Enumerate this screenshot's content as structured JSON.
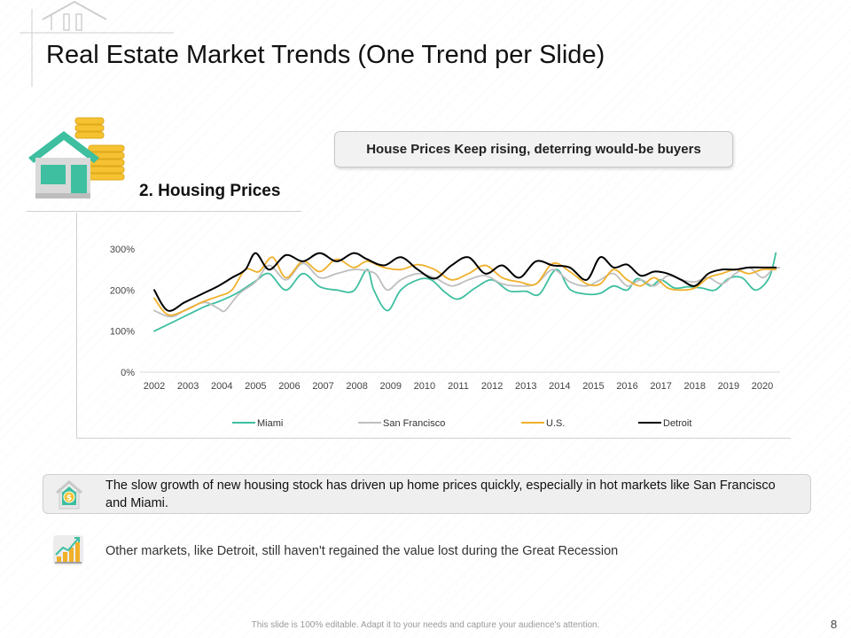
{
  "slide": {
    "title": "Real Estate Market Trends (One Trend per Slide)",
    "callout": "House Prices Keep rising, deterring would-be buyers",
    "section_title": "2. Housing Prices",
    "note1": "The slow growth of new housing stock has driven up home prices quickly, especially in hot markets like San Francisco and Miami.",
    "note2": "Other markets, like Detroit, still haven't regained the value lost during the Great Recession",
    "footer": "This slide is 100% editable. Adapt it to your needs and capture your audience's attention.",
    "page_number": "8"
  },
  "icons": {
    "corner": "house-outline-icon",
    "main": "house-with-coins-icon",
    "note1": "house-dollar-icon",
    "note2": "bar-chart-growth-icon"
  },
  "colors": {
    "miami": "#3dbfa0",
    "san_francisco": "#bfbfbf",
    "us": "#f0b02a",
    "detroit": "#000000",
    "house_green": "#3dbfa0",
    "coin_gold": "#f5c232"
  },
  "chart_data": {
    "type": "line",
    "title": "",
    "xlabel": "",
    "ylabel": "",
    "x": [
      "2002",
      "2003",
      "2004",
      "2005",
      "2006",
      "2007",
      "2008",
      "2009",
      "2010",
      "2011",
      "2012",
      "2013",
      "2014",
      "2015",
      "2016",
      "2017",
      "2018",
      "2019",
      "2020"
    ],
    "y_ticks": [
      "0%",
      "100%",
      "200%",
      "300%"
    ],
    "ylim": [
      0,
      300
    ],
    "grid": false,
    "legend_position": "bottom",
    "series": [
      {
        "name": "Miami",
        "color": "#3dbfa0",
        "points": [
          [
            2002.0,
            100
          ],
          [
            2002.5,
            120
          ],
          [
            2003.0,
            140
          ],
          [
            2003.5,
            160
          ],
          [
            2004.0,
            175
          ],
          [
            2004.5,
            195
          ],
          [
            2005.0,
            222
          ],
          [
            2005.4,
            240
          ],
          [
            2005.9,
            200
          ],
          [
            2006.4,
            240
          ],
          [
            2006.9,
            208
          ],
          [
            2007.4,
            200
          ],
          [
            2007.9,
            198
          ],
          [
            2008.3,
            250
          ],
          [
            2008.5,
            200
          ],
          [
            2008.9,
            150
          ],
          [
            2009.3,
            200
          ],
          [
            2009.8,
            225
          ],
          [
            2010.2,
            225
          ],
          [
            2010.6,
            195
          ],
          [
            2011.0,
            178
          ],
          [
            2011.5,
            205
          ],
          [
            2012.0,
            225
          ],
          [
            2012.5,
            198
          ],
          [
            2013.0,
            197
          ],
          [
            2013.4,
            190
          ],
          [
            2013.9,
            250
          ],
          [
            2014.3,
            202
          ],
          [
            2014.8,
            190
          ],
          [
            2015.2,
            192
          ],
          [
            2015.6,
            210
          ],
          [
            2016.0,
            200
          ],
          [
            2016.3,
            228
          ],
          [
            2016.7,
            210
          ],
          [
            2017.0,
            225
          ],
          [
            2017.4,
            205
          ],
          [
            2017.8,
            208
          ],
          [
            2018.2,
            205
          ],
          [
            2018.6,
            200
          ],
          [
            2019.0,
            228
          ],
          [
            2019.4,
            230
          ],
          [
            2019.8,
            200
          ],
          [
            2020.2,
            230
          ],
          [
            2020.4,
            290
          ]
        ]
      },
      {
        "name": "San Francisco",
        "color": "#bfbfbf",
        "points": [
          [
            2002.0,
            150
          ],
          [
            2002.5,
            135
          ],
          [
            2003.0,
            155
          ],
          [
            2003.5,
            170
          ],
          [
            2003.9,
            155
          ],
          [
            2004.1,
            150
          ],
          [
            2004.5,
            190
          ],
          [
            2005.0,
            220
          ],
          [
            2005.4,
            260
          ],
          [
            2005.9,
            225
          ],
          [
            2006.4,
            265
          ],
          [
            2006.9,
            230
          ],
          [
            2007.4,
            240
          ],
          [
            2007.9,
            250
          ],
          [
            2008.4,
            245
          ],
          [
            2008.6,
            235
          ],
          [
            2008.9,
            200
          ],
          [
            2009.3,
            225
          ],
          [
            2009.8,
            240
          ],
          [
            2010.3,
            230
          ],
          [
            2010.8,
            210
          ],
          [
            2011.3,
            225
          ],
          [
            2011.8,
            235
          ],
          [
            2012.3,
            215
          ],
          [
            2012.8,
            210
          ],
          [
            2013.3,
            215
          ],
          [
            2013.8,
            250
          ],
          [
            2014.3,
            220
          ],
          [
            2014.8,
            210
          ],
          [
            2015.2,
            225
          ],
          [
            2015.6,
            240
          ],
          [
            2016.0,
            210
          ],
          [
            2016.4,
            225
          ],
          [
            2016.8,
            210
          ],
          [
            2017.2,
            235
          ],
          [
            2017.6,
            225
          ],
          [
            2018.0,
            220
          ],
          [
            2018.4,
            230
          ],
          [
            2018.8,
            215
          ],
          [
            2019.2,
            240
          ],
          [
            2019.6,
            255
          ],
          [
            2020.0,
            230
          ],
          [
            2020.3,
            250
          ],
          [
            2020.5,
            255
          ]
        ]
      },
      {
        "name": "U.S.",
        "color": "#f0b02a",
        "points": [
          [
            2002.0,
            180
          ],
          [
            2002.4,
            140
          ],
          [
            2002.9,
            150
          ],
          [
            2003.4,
            170
          ],
          [
            2003.9,
            185
          ],
          [
            2004.3,
            200
          ],
          [
            2004.7,
            250
          ],
          [
            2005.1,
            245
          ],
          [
            2005.5,
            280
          ],
          [
            2005.9,
            230
          ],
          [
            2006.4,
            270
          ],
          [
            2006.9,
            245
          ],
          [
            2007.4,
            275
          ],
          [
            2007.9,
            255
          ],
          [
            2008.3,
            270
          ],
          [
            2008.8,
            255
          ],
          [
            2009.3,
            250
          ],
          [
            2009.8,
            262
          ],
          [
            2010.3,
            250
          ],
          [
            2010.8,
            225
          ],
          [
            2011.3,
            240
          ],
          [
            2011.8,
            260
          ],
          [
            2012.3,
            230
          ],
          [
            2012.8,
            220
          ],
          [
            2013.3,
            215
          ],
          [
            2013.8,
            265
          ],
          [
            2014.3,
            245
          ],
          [
            2014.8,
            215
          ],
          [
            2015.2,
            215
          ],
          [
            2015.6,
            250
          ],
          [
            2016.0,
            225
          ],
          [
            2016.4,
            210
          ],
          [
            2016.8,
            230
          ],
          [
            2017.2,
            205
          ],
          [
            2017.6,
            200
          ],
          [
            2018.0,
            205
          ],
          [
            2018.4,
            230
          ],
          [
            2018.8,
            240
          ],
          [
            2019.2,
            250
          ],
          [
            2019.6,
            240
          ],
          [
            2020.0,
            250
          ],
          [
            2020.4,
            250
          ]
        ]
      },
      {
        "name": "Detroit",
        "color": "#000000",
        "points": [
          [
            2002.0,
            200
          ],
          [
            2002.4,
            150
          ],
          [
            2002.9,
            170
          ],
          [
            2003.4,
            190
          ],
          [
            2003.9,
            210
          ],
          [
            2004.3,
            230
          ],
          [
            2004.7,
            250
          ],
          [
            2005.0,
            290
          ],
          [
            2005.4,
            250
          ],
          [
            2005.9,
            285
          ],
          [
            2006.4,
            270
          ],
          [
            2006.9,
            290
          ],
          [
            2007.4,
            270
          ],
          [
            2007.9,
            290
          ],
          [
            2008.3,
            275
          ],
          [
            2008.8,
            260
          ],
          [
            2009.3,
            280
          ],
          [
            2009.8,
            250
          ],
          [
            2010.3,
            228
          ],
          [
            2010.8,
            260
          ],
          [
            2011.3,
            280
          ],
          [
            2011.8,
            240
          ],
          [
            2012.3,
            260
          ],
          [
            2012.8,
            230
          ],
          [
            2013.3,
            270
          ],
          [
            2013.8,
            260
          ],
          [
            2014.3,
            255
          ],
          [
            2014.8,
            225
          ],
          [
            2015.2,
            280
          ],
          [
            2015.6,
            255
          ],
          [
            2016.0,
            262
          ],
          [
            2016.4,
            235
          ],
          [
            2016.8,
            245
          ],
          [
            2017.2,
            240
          ],
          [
            2017.6,
            225
          ],
          [
            2018.0,
            210
          ],
          [
            2018.4,
            240
          ],
          [
            2018.8,
            250
          ],
          [
            2019.2,
            250
          ],
          [
            2019.6,
            255
          ],
          [
            2020.0,
            255
          ],
          [
            2020.4,
            255
          ]
        ]
      }
    ]
  }
}
